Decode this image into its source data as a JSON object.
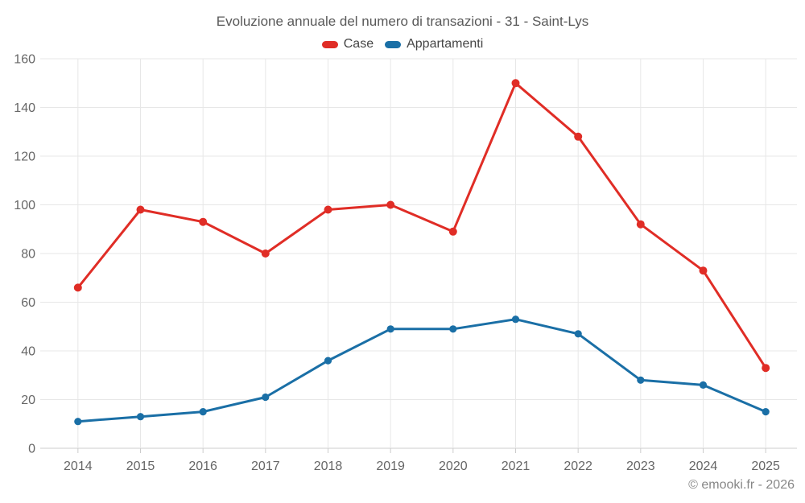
{
  "chart_data": {
    "type": "line",
    "title": "Evoluzione annuale del numero di transazioni - 31 - Saint-Lys",
    "categories": [
      "2014",
      "2015",
      "2016",
      "2017",
      "2018",
      "2019",
      "2020",
      "2021",
      "2022",
      "2023",
      "2024",
      "2025"
    ],
    "series": [
      {
        "name": "Case",
        "color": "#e02d26",
        "values": [
          66,
          98,
          93,
          80,
          98,
          100,
          89,
          150,
          128,
          92,
          73,
          33
        ]
      },
      {
        "name": "Appartamenti",
        "color": "#1a6fa6",
        "values": [
          11,
          13,
          15,
          21,
          36,
          49,
          49,
          53,
          47,
          28,
          26,
          15
        ]
      }
    ],
    "ylim": [
      0,
      160
    ],
    "ytick_step": 20,
    "yticks": [
      0,
      20,
      40,
      60,
      80,
      100,
      120,
      140,
      160
    ],
    "grid": true,
    "legend_position": "top",
    "colors": {
      "grid": "#e7e7e7",
      "axis": "#cccccc",
      "tick_label": "#666666"
    }
  },
  "footer": {
    "credit": "© emooki.fr - 2026"
  }
}
